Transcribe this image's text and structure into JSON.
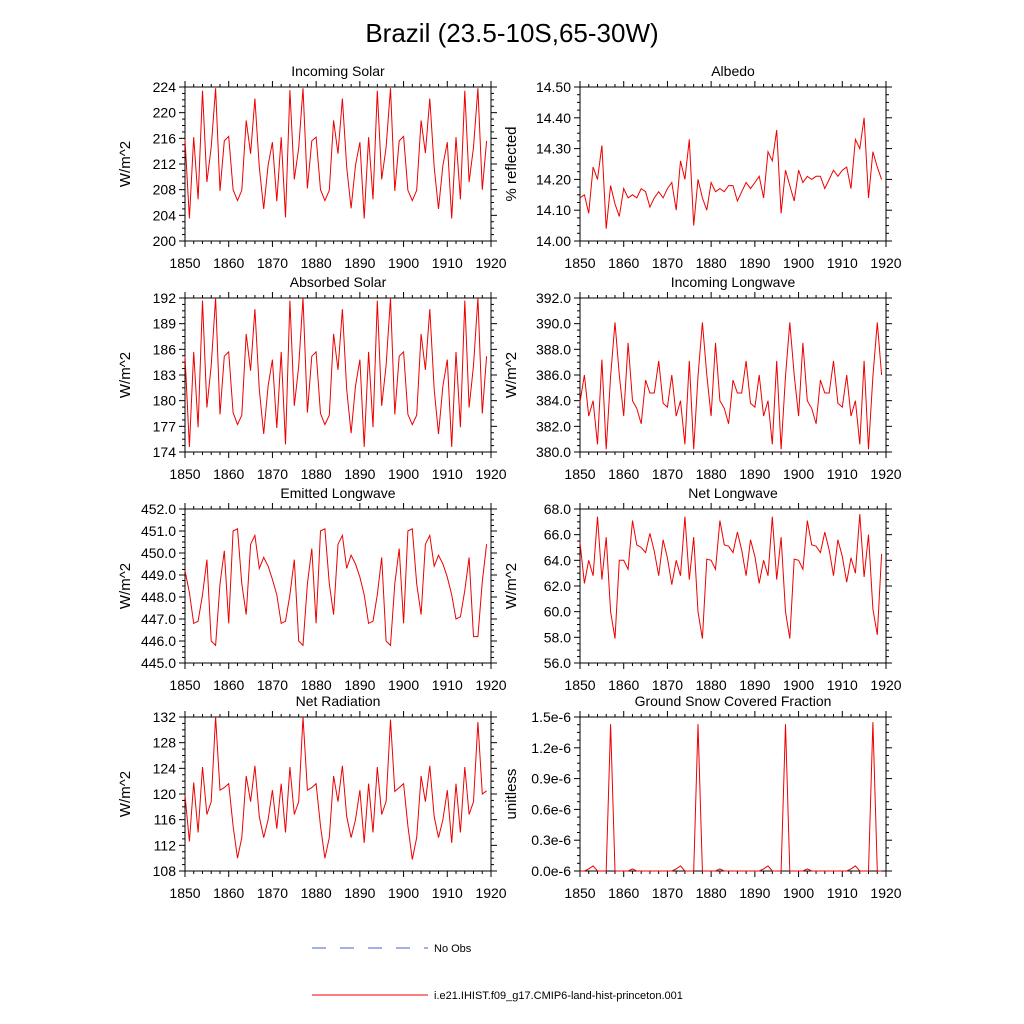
{
  "figure_title": "Brazil (23.5-10S,65-30W)",
  "legend": {
    "obs_label": "No Obs",
    "model_label": "i.e21.IHIST.f09_g17.CMIP6-land-hist-princeton.001",
    "obs_color": "#4a5fd0",
    "model_color": "#ee0000"
  },
  "chart_data": [
    {
      "type": "line",
      "title": "Incoming Solar",
      "ylabel": "W/m^2",
      "xlabel": "",
      "xlim": [
        1850,
        1920
      ],
      "ylim": [
        200,
        224
      ],
      "yticks": [
        "200",
        "204",
        "208",
        "212",
        "216",
        "220",
        "224"
      ],
      "xticks": [
        "1850",
        "1860",
        "1870",
        "1880",
        "1890",
        "1900",
        "1910",
        "1920"
      ],
      "series": [
        {
          "color": "#ee0000",
          "x_start": 1850,
          "values": [
            215.8,
            203.5,
            216.2,
            206.5,
            223.4,
            209.2,
            214.6,
            223.8,
            207.8,
            215.6,
            216.3,
            208,
            206.3,
            207.9,
            218.8,
            213.6,
            222.2,
            211.5,
            205,
            211.8,
            215.4,
            206.2,
            216.2,
            203.7,
            223.5,
            209.6,
            214.5,
            223.8,
            208.2,
            215.6,
            216.2,
            208,
            206.3,
            207.9,
            218.8,
            213.6,
            222.2,
            211.5,
            205.1,
            211.8,
            215.4,
            203.5,
            216.2,
            206.5,
            223.4,
            209.6,
            214.6,
            223.8,
            207.8,
            215.6,
            216.3,
            207.9,
            206.3,
            207.9,
            218.8,
            213.7,
            222.2,
            211.5,
            205,
            211.8,
            215.4,
            203.5,
            216.2,
            206.5,
            223.4,
            209.2,
            214.6,
            223.8,
            208,
            215.6
          ]
        }
      ]
    },
    {
      "type": "line",
      "title": "Albedo",
      "ylabel": "% reflected",
      "xlabel": "",
      "xlim": [
        1850,
        1920
      ],
      "ylim": [
        14.0,
        14.5
      ],
      "yticks": [
        "14.00",
        "14.10",
        "14.20",
        "14.30",
        "14.40",
        "14.50"
      ],
      "xticks": [
        "1850",
        "1860",
        "1870",
        "1880",
        "1890",
        "1900",
        "1910",
        "1920"
      ],
      "series": [
        {
          "color": "#ee0000",
          "x_start": 1850,
          "values": [
            14.14,
            14.15,
            14.09,
            14.24,
            14.2,
            14.31,
            14.04,
            14.18,
            14.12,
            14.08,
            14.17,
            14.14,
            14.15,
            14.14,
            14.17,
            14.16,
            14.11,
            14.14,
            14.16,
            14.14,
            14.17,
            14.19,
            14.1,
            14.26,
            14.2,
            14.33,
            14.05,
            14.2,
            14.14,
            14.1,
            14.19,
            14.16,
            14.17,
            14.16,
            14.18,
            14.18,
            14.13,
            14.16,
            14.19,
            14.17,
            14.19,
            14.21,
            14.14,
            14.29,
            14.26,
            14.36,
            14.09,
            14.23,
            14.18,
            14.13,
            14.23,
            14.19,
            14.21,
            14.2,
            14.21,
            14.21,
            14.17,
            14.2,
            14.23,
            14.21,
            14.23,
            14.24,
            14.17,
            14.33,
            14.3,
            14.4,
            14.14,
            14.29,
            14.24,
            14.2
          ]
        }
      ]
    },
    {
      "type": "line",
      "title": "Absorbed Solar",
      "ylabel": "W/m^2",
      "xlabel": "",
      "xlim": [
        1850,
        1920
      ],
      "ylim": [
        174,
        192
      ],
      "yticks": [
        "174",
        "177",
        "180",
        "183",
        "186",
        "189",
        "192"
      ],
      "xticks": [
        "1850",
        "1860",
        "1870",
        "1880",
        "1890",
        "1900",
        "1910",
        "1920"
      ],
      "series": [
        {
          "color": "#ee0000",
          "x_start": 1850,
          "values": [
            185.2,
            174.6,
            185.7,
            176.9,
            191.7,
            179.2,
            184.1,
            192,
            178.4,
            185.2,
            185.7,
            178.6,
            177.2,
            178.3,
            187.8,
            183.5,
            190.7,
            181.3,
            176.1,
            181.7,
            184.8,
            176.8,
            185.7,
            174.9,
            191.7,
            179.4,
            184,
            192,
            178.6,
            185.2,
            185.7,
            178.5,
            177.2,
            178.3,
            187.8,
            183.6,
            190.7,
            181.3,
            176.2,
            181.7,
            184.8,
            174.6,
            185.7,
            176.9,
            191.7,
            179.4,
            184.1,
            192,
            178.4,
            185.2,
            185.7,
            178.4,
            177.2,
            178.3,
            187.8,
            183.6,
            190.7,
            181.3,
            176.1,
            181.7,
            184.8,
            174.6,
            185.7,
            176.9,
            191.7,
            179.2,
            184.1,
            192,
            178.5,
            185.2
          ]
        }
      ]
    },
    {
      "type": "line",
      "title": "Incoming Longwave",
      "ylabel": "W/m^2",
      "xlabel": "",
      "xlim": [
        1850,
        1920
      ],
      "ylim": [
        380,
        392
      ],
      "yticks": [
        "380.0",
        "382.0",
        "384.0",
        "386.0",
        "388.0",
        "390.0",
        "392.0"
      ],
      "xticks": [
        "1850",
        "1860",
        "1870",
        "1880",
        "1890",
        "1900",
        "1910",
        "1920"
      ],
      "series": [
        {
          "color": "#ee0000",
          "x_start": 1850,
          "values": [
            383.9,
            386,
            382.8,
            384,
            380.6,
            387.2,
            380.2,
            385.9,
            390.1,
            386,
            382.8,
            388.5,
            384,
            383.4,
            382.2,
            385.6,
            384.6,
            384.6,
            387.1,
            383.8,
            383.5,
            386,
            382.8,
            384,
            380.6,
            387.1,
            380.2,
            385.9,
            390.1,
            386,
            382.8,
            388.5,
            384,
            383.4,
            382.2,
            385.6,
            384.6,
            384.6,
            387.1,
            383.8,
            383.5,
            386,
            382.8,
            384,
            380.6,
            387.1,
            380.2,
            385.9,
            390.1,
            386,
            382.8,
            388.5,
            384,
            383.4,
            382.2,
            385.6,
            384.6,
            384.6,
            387.1,
            383.8,
            383.5,
            386,
            382.8,
            384,
            380.6,
            387.1,
            380.2,
            385.9,
            390.1,
            386
          ]
        }
      ]
    },
    {
      "type": "line",
      "title": "Emitted Longwave",
      "ylabel": "W/m^2",
      "xlabel": "",
      "xlim": [
        1850,
        1920
      ],
      "ylim": [
        445,
        452
      ],
      "yticks": [
        "445.0",
        "446.0",
        "447.0",
        "448.0",
        "449.0",
        "450.0",
        "451.0",
        "452.0"
      ],
      "xticks": [
        "1850",
        "1860",
        "1870",
        "1880",
        "1890",
        "1900",
        "1910",
        "1920"
      ],
      "series": [
        {
          "color": "#ee0000",
          "x_start": 1850,
          "values": [
            449.2,
            448.2,
            446.8,
            446.9,
            448.1,
            449.7,
            446,
            445.8,
            448.6,
            450.1,
            446.8,
            451,
            451.1,
            448.6,
            447.2,
            450.4,
            450.8,
            449.3,
            449.8,
            449.4,
            448.8,
            448.1,
            446.8,
            446.9,
            448.1,
            449.7,
            446,
            445.8,
            448.6,
            450.2,
            446.8,
            451,
            451.1,
            448.6,
            447.2,
            450.4,
            450.8,
            449.3,
            449.9,
            449.5,
            448.9,
            448.1,
            446.8,
            446.9,
            448.1,
            449.8,
            446,
            445.8,
            448.6,
            450.2,
            446.8,
            451,
            451.1,
            448.6,
            447.2,
            450.4,
            450.8,
            449.4,
            449.9,
            449.5,
            448.9,
            448.1,
            447,
            447.1,
            448.3,
            449.8,
            446.2,
            446.2,
            448.7,
            450.4
          ]
        }
      ]
    },
    {
      "type": "line",
      "title": "Net Longwave",
      "ylabel": "W/m^2",
      "xlabel": "",
      "xlim": [
        1850,
        1920
      ],
      "ylim": [
        56,
        68
      ],
      "yticks": [
        "56.0",
        "58.0",
        "60.0",
        "62.0",
        "64.0",
        "66.0",
        "68.0"
      ],
      "xticks": [
        "1850",
        "1860",
        "1870",
        "1880",
        "1890",
        "1900",
        "1910",
        "1920"
      ],
      "series": [
        {
          "color": "#ee0000",
          "x_start": 1850,
          "values": [
            65.4,
            62.2,
            64,
            62.8,
            67.4,
            62.5,
            65.8,
            60,
            57.9,
            64,
            64,
            63.3,
            67.1,
            65.2,
            65,
            64.6,
            66.1,
            64.7,
            62.8,
            65.6,
            64.2,
            62.1,
            64,
            62.8,
            67.4,
            62.5,
            65.8,
            60,
            57.9,
            64.1,
            64,
            63.3,
            67.1,
            65.2,
            65.1,
            64.6,
            66.2,
            64.8,
            62.8,
            65.6,
            64.3,
            62.2,
            64,
            62.8,
            67.4,
            62.5,
            65.8,
            60,
            57.9,
            64.1,
            64,
            63.3,
            67.1,
            65.2,
            65.1,
            64.6,
            66.2,
            64.8,
            62.8,
            65.6,
            64.3,
            62.3,
            64.2,
            63,
            67.6,
            62.7,
            66,
            60.2,
            58.2,
            64.5
          ]
        }
      ]
    },
    {
      "type": "line",
      "title": "Net Radiation",
      "ylabel": "W/m^2",
      "xlabel": "",
      "xlim": [
        1850,
        1920
      ],
      "ylim": [
        108,
        132
      ],
      "yticks": [
        "108",
        "112",
        "116",
        "120",
        "124",
        "128",
        "132"
      ],
      "xticks": [
        "1850",
        "1860",
        "1870",
        "1880",
        "1890",
        "1900",
        "1910",
        "1920"
      ],
      "series": [
        {
          "color": "#ee0000",
          "x_start": 1850,
          "values": [
            119.8,
            112.6,
            121.8,
            114,
            124.2,
            116.8,
            118.8,
            132.1,
            120.6,
            121,
            121.6,
            115,
            110,
            113.2,
            122.8,
            118.8,
            124.4,
            116.5,
            113.2,
            116,
            120.6,
            114.6,
            121.6,
            114,
            124.2,
            116.8,
            118.8,
            132.1,
            120.6,
            121,
            121.6,
            115,
            110,
            113.2,
            122.8,
            118.8,
            124.4,
            116.5,
            113.2,
            116,
            120.6,
            112.4,
            121.6,
            114,
            124.2,
            116.8,
            118.8,
            131.6,
            120.4,
            121,
            121.6,
            115,
            109.8,
            113.2,
            122.8,
            118.8,
            124.4,
            116.5,
            113.2,
            116,
            120.6,
            112.4,
            121.6,
            114,
            124.2,
            116.8,
            118.8,
            131.2,
            120,
            120.5
          ]
        }
      ]
    },
    {
      "type": "line",
      "title": "Ground Snow Covered Fraction",
      "ylabel": "unitless",
      "xlabel": "",
      "xlim": [
        1850,
        1920
      ],
      "ylim": [
        0,
        1.5e-06
      ],
      "yticks": [
        "0.0e-6",
        "0.3e-6",
        "0.6e-6",
        "0.9e-6",
        "1.2e-6",
        "1.5e-6"
      ],
      "xticks": [
        "1850",
        "1860",
        "1870",
        "1880",
        "1890",
        "1900",
        "1910",
        "1920"
      ],
      "series": [
        {
          "color": "#ee0000",
          "x_start": 1850,
          "values": [
            0,
            0,
            2e-08,
            5e-08,
            0,
            0,
            0,
            1.43e-06,
            0,
            0,
            0,
            0,
            2e-08,
            0,
            0,
            0,
            0,
            0,
            0,
            0,
            0,
            0,
            2e-08,
            5e-08,
            0,
            0,
            0,
            1.43e-06,
            0,
            0,
            0,
            0,
            2e-08,
            0,
            0,
            0,
            0,
            0,
            0,
            0,
            0,
            0,
            2e-08,
            5e-08,
            0,
            0,
            0,
            1.43e-06,
            0,
            0,
            0,
            0,
            2e-08,
            0,
            0,
            0,
            0,
            0,
            0,
            0,
            0,
            0,
            2e-08,
            5e-08,
            0,
            0,
            0,
            1.45e-06,
            0,
            0
          ]
        }
      ]
    }
  ]
}
